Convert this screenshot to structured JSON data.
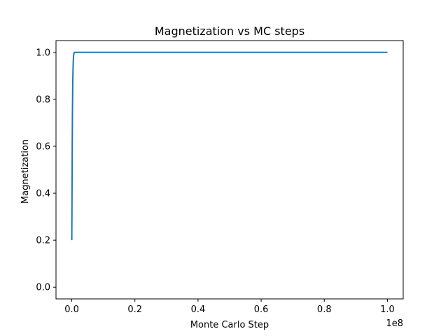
{
  "chart_data": {
    "type": "line",
    "title": "Magnetization vs MC steps",
    "xlabel": "Monte Carlo Step",
    "ylabel": "Magnetization",
    "x_offset_label": "1e8",
    "xlim": [
      -0.05,
      1.05
    ],
    "ylim": [
      -0.05,
      1.05
    ],
    "x_ticks": [
      0.0,
      0.2,
      0.4,
      0.6,
      0.8,
      1.0
    ],
    "x_tick_labels": [
      "0.0",
      "0.2",
      "0.4",
      "0.6",
      "0.8",
      "1.0"
    ],
    "y_ticks": [
      0.0,
      0.2,
      0.4,
      0.6,
      0.8,
      1.0
    ],
    "y_tick_labels": [
      "0.0",
      "0.2",
      "0.4",
      "0.6",
      "0.8",
      "1.0"
    ],
    "grid": false,
    "legend": "none",
    "series": [
      {
        "color": "#1f77b4",
        "x": [
          0.0,
          0.0005,
          0.001,
          0.0015,
          0.002,
          0.003,
          0.004,
          0.005,
          0.006,
          0.008,
          0.01,
          0.02,
          0.05,
          0.1,
          0.2,
          0.3,
          0.4,
          0.5,
          0.6,
          0.7,
          0.8,
          0.9,
          1.0
        ],
        "y": [
          0.2,
          0.31,
          0.47,
          0.62,
          0.73,
          0.86,
          0.93,
          0.97,
          0.99,
          1.0,
          1.0,
          1.0,
          1.0,
          1.0,
          1.0,
          1.0,
          1.0,
          1.0,
          1.0,
          1.0,
          1.0,
          1.0,
          1.0
        ]
      }
    ]
  }
}
